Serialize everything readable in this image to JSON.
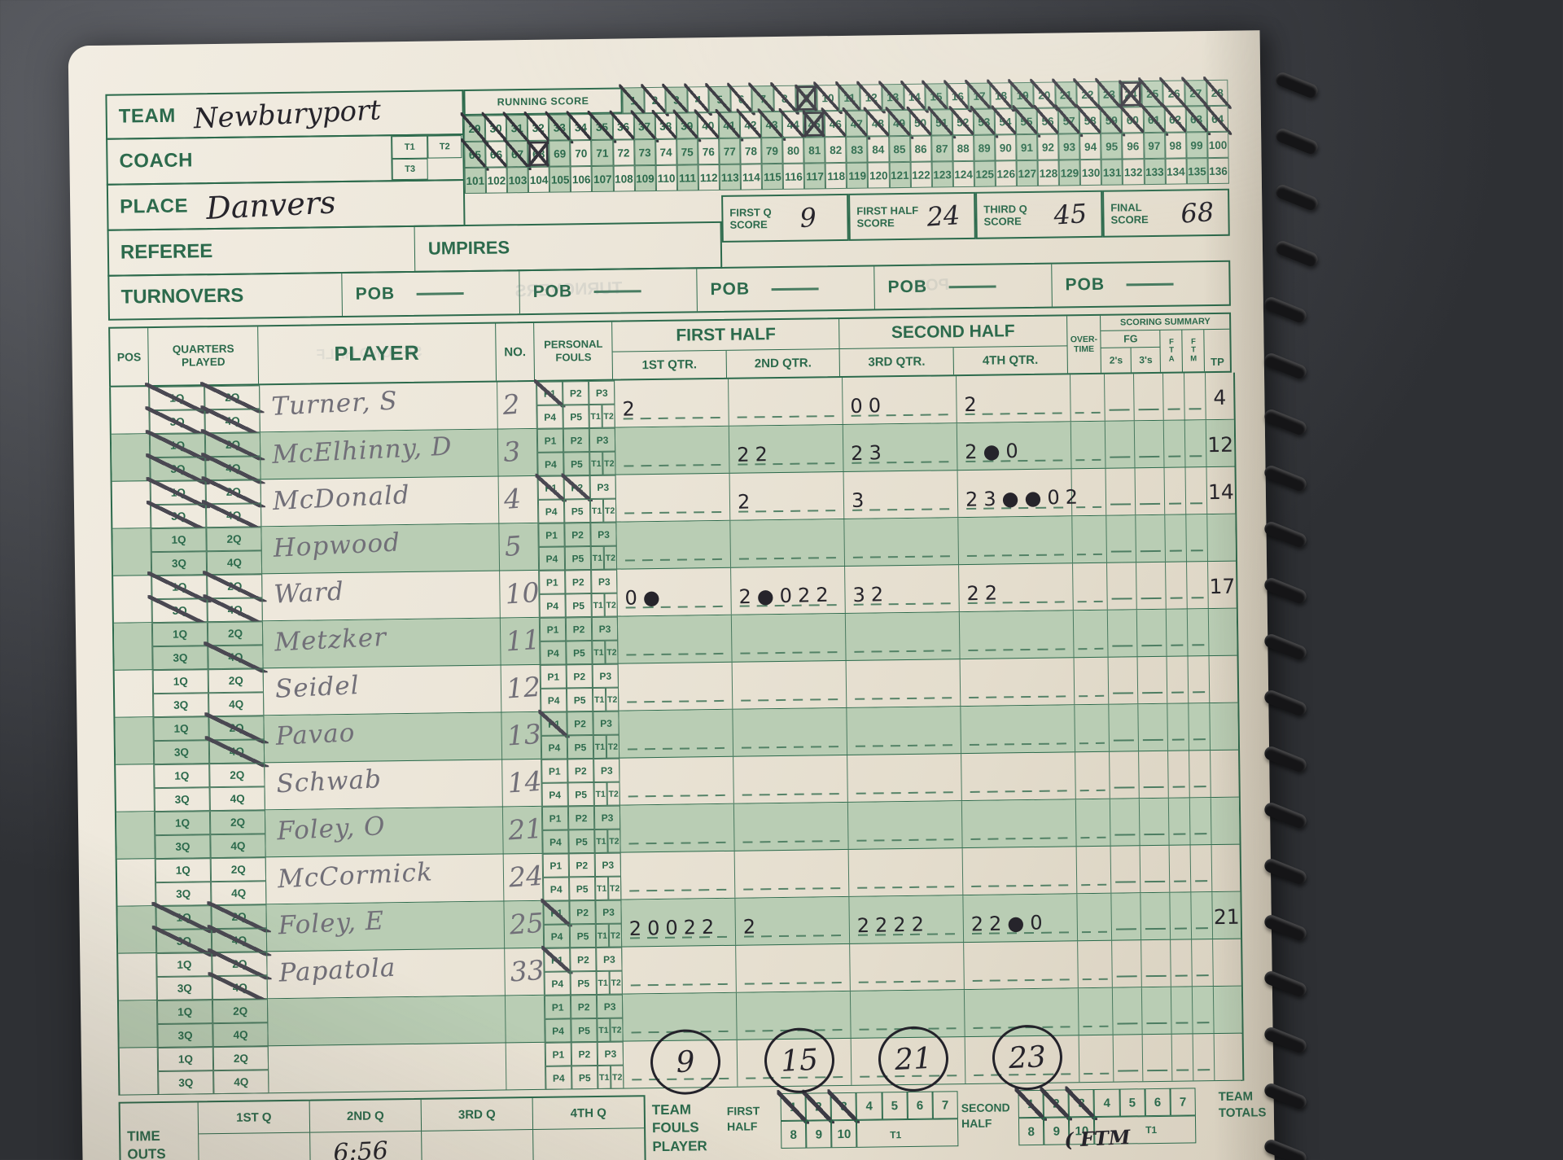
{
  "colors": {
    "paper": "#ebe5d8",
    "print_green": "#2c6a4c",
    "row_shade": "#b9cdb4",
    "ink": "#26242b",
    "pencil": "#716f78",
    "desk": "#4b4d52"
  },
  "info": {
    "team_label": "TEAM",
    "team_value": "Newburyport",
    "coach_label": "COACH",
    "coach_value": "",
    "place_label": "PLACE",
    "place_value": "Danvers",
    "t_boxes": [
      "T1",
      "T2",
      "T3"
    ]
  },
  "running_score": {
    "title": "RUNNING SCORE",
    "rows": [
      {
        "start": 1,
        "end": 28
      },
      {
        "start": 29,
        "end": 64
      },
      {
        "start": 65,
        "end": 100
      },
      {
        "start": 101,
        "end": 136
      }
    ],
    "crossed_up_to": 68,
    "boxed": [
      9,
      24,
      45,
      68
    ]
  },
  "score_boxes": [
    {
      "label1": "FIRST Q",
      "label2": "SCORE",
      "value": "9"
    },
    {
      "label1": "FIRST HALF",
      "label2": "SCORE",
      "value": "24"
    },
    {
      "label1": "THIRD Q",
      "label2": "SCORE",
      "value": "45"
    },
    {
      "label1": "FINAL",
      "label2": "SCORE",
      "value": "68"
    }
  ],
  "officials": {
    "referee_label": "REFEREE",
    "umpires_label": "UMPIRES"
  },
  "turnovers": {
    "label": "TURNOVERS",
    "pob_label": "POB",
    "pob_sections": 5
  },
  "table": {
    "headers": {
      "pos": "POS",
      "quarters_played": "QUARTERS PLAYED",
      "player": "PLAYER",
      "no": "NO.",
      "personal_fouls": "PERSONAL FOULS",
      "first_half": "FIRST HALF",
      "second_half": "SECOND HALF",
      "qtrs": [
        "1ST QTR.",
        "2ND QTR.",
        "3RD QTR.",
        "4TH QTR."
      ],
      "overtime": "OVER- TIME",
      "scoring_summary": "SCORING SUMMARY",
      "fg": "FG",
      "twos": "2's",
      "threes": "3's",
      "fta": [
        "F",
        "T",
        "A"
      ],
      "ftm": [
        "F",
        "T",
        "M"
      ],
      "tp": "TP"
    },
    "quarter_box_labels": [
      "1Q",
      "2Q",
      "3Q",
      "4Q"
    ],
    "foul_box_labels": [
      "P1",
      "P2",
      "P3",
      "P4",
      "P5",
      "T1",
      "T2"
    ],
    "players": [
      {
        "name": "Turner, S",
        "no": "2",
        "q": [
          "1Q",
          "2Q",
          "3Q",
          "4Q"
        ],
        "f": [
          "P1"
        ],
        "e1": "2",
        "e2": "",
        "e3": "00",
        "e4": "2",
        "tp": "4",
        "sh": false
      },
      {
        "name": "McElhinny, D",
        "no": "3",
        "q": [
          "1Q",
          "2Q",
          "3Q",
          "4Q"
        ],
        "f": [],
        "e1": "",
        "e2": "22",
        "e3": "23",
        "e4": "2●0",
        "tp": "12",
        "sh": true
      },
      {
        "name": "McDonald",
        "no": "4",
        "q": [
          "1Q",
          "2Q",
          "3Q",
          "4Q"
        ],
        "f": [
          "P1",
          "P2"
        ],
        "e1": "",
        "e2": "2",
        "e3": "3",
        "e4": "23●●02",
        "tp": "14",
        "sh": false
      },
      {
        "name": "Hopwood",
        "no": "5",
        "q": [],
        "f": [],
        "e1": "",
        "e2": "",
        "e3": "",
        "e4": "",
        "tp": "",
        "sh": true
      },
      {
        "name": "Ward",
        "no": "10",
        "q": [
          "1Q",
          "2Q",
          "3Q",
          "4Q"
        ],
        "f": [],
        "e1": "0●",
        "e2": "2●022",
        "e3": "32",
        "e4": "22",
        "tp": "17",
        "sh": false
      },
      {
        "name": "Metzker",
        "no": "11",
        "q": [
          "4Q"
        ],
        "f": [],
        "e1": "",
        "e2": "",
        "e3": "",
        "e4": "",
        "tp": "",
        "sh": true
      },
      {
        "name": "Seidel",
        "no": "12",
        "q": [],
        "f": [],
        "e1": "",
        "e2": "",
        "e3": "",
        "e4": "",
        "tp": "",
        "sh": false
      },
      {
        "name": "Pavao",
        "no": "13",
        "q": [
          "2Q",
          "4Q"
        ],
        "f": [
          "P1"
        ],
        "e1": "",
        "e2": "",
        "e3": "",
        "e4": "",
        "tp": "",
        "sh": true
      },
      {
        "name": "Schwab",
        "no": "14",
        "q": [],
        "f": [],
        "e1": "",
        "e2": "",
        "e3": "",
        "e4": "",
        "tp": "",
        "sh": false
      },
      {
        "name": "Foley, O",
        "no": "21",
        "q": [],
        "f": [],
        "e1": "",
        "e2": "",
        "e3": "",
        "e4": "",
        "tp": "",
        "sh": true
      },
      {
        "name": "McCormick",
        "no": "24",
        "q": [],
        "f": [],
        "e1": "",
        "e2": "",
        "e3": "",
        "e4": "",
        "tp": "",
        "sh": false
      },
      {
        "name": "Foley, E",
        "no": "25",
        "q": [
          "1Q",
          "2Q",
          "3Q",
          "4Q"
        ],
        "f": [
          "P1"
        ],
        "e1": "20022",
        "e2": "2",
        "e3": "2222",
        "e4": "22●0",
        "tp": "21",
        "sh": true
      },
      {
        "name": "Papatola",
        "no": "33",
        "q": [
          "2Q",
          "4Q"
        ],
        "f": [
          "P1"
        ],
        "e1": "",
        "e2": "",
        "e3": "",
        "e4": "",
        "tp": "",
        "sh": false
      },
      {
        "name": "",
        "no": "",
        "q": [],
        "f": [],
        "e1": "",
        "e2": "",
        "e3": "",
        "e4": "",
        "tp": "",
        "sh": true
      },
      {
        "name": "",
        "no": "",
        "q": [],
        "f": [],
        "e1": "",
        "e2": "",
        "e3": "",
        "e4": "",
        "tp": "",
        "sh": false
      }
    ],
    "quarter_totals": [
      "9",
      "15",
      "21",
      "23"
    ]
  },
  "team_fouls": {
    "label": [
      "TEAM",
      "FOULS"
    ],
    "first_half": [
      "FIRST",
      "HALF"
    ],
    "second_half": [
      "SECOND",
      "HALF"
    ],
    "numbers_top": [
      "1",
      "2",
      "3",
      "4",
      "5",
      "6",
      "7"
    ],
    "numbers_bottom": [
      "8",
      "9",
      "10"
    ],
    "slashed_first": [
      1,
      2,
      3
    ],
    "slashed_second": [
      1,
      2,
      3
    ],
    "team_totals": [
      "TEAM",
      "TOTALS"
    ]
  },
  "timeouts": {
    "label": [
      "TIME",
      "OUTS"
    ],
    "columns": [
      "1ST Q",
      "2ND Q",
      "3RD Q",
      "4TH Q"
    ],
    "values": [
      "",
      "6:56",
      "",
      ""
    ]
  },
  "bottom_row": {
    "player_label": "PLAYER",
    "t1_label": "T1",
    "ftm_note": "( FTM"
  },
  "bleedthrough": [
    "TURNOVERS",
    "POB",
    "SECOND HALF"
  ]
}
